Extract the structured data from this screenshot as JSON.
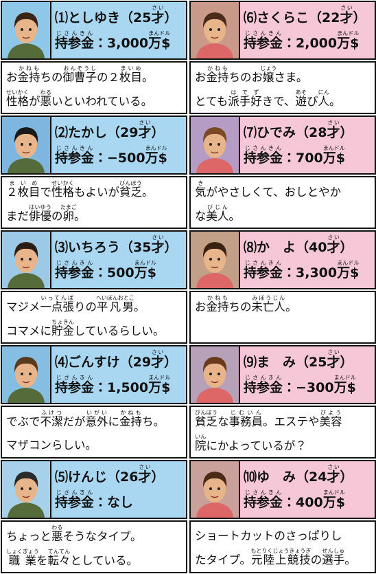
{
  "characters": [
    {
      "name": [
        "⑴としゆき（25",
        {
          "text": "才",
          "ruby": "さい"
        },
        "）"
      ],
      "money": [
        {
          "text": "持参金",
          "ruby": "じさんきん"
        },
        "：3,000",
        {
          "text": "万$",
          "ruby": "まんドル"
        }
      ],
      "description": [
        [
          "お",
          {
            "text": "金持",
            "ruby": "かねも"
          },
          "ちの",
          {
            "text": "御曹子",
            "ruby": "おんぞうし"
          },
          "の２",
          {
            "text": "枚目",
            "ruby": "まいめ"
          },
          "。"
        ],
        [
          {
            "text": "性格",
            "ruby": "せいかく"
          },
          "が",
          {
            "text": "悪",
            "ruby": "わる"
          },
          "いといわれている。"
        ]
      ]
    },
    {
      "name": [
        "⑵たかし（29",
        {
          "text": "才",
          "ruby": "さい"
        },
        "）"
      ],
      "money": [
        {
          "text": "持参金",
          "ruby": "じさんきん"
        },
        "：−500",
        {
          "text": "万$",
          "ruby": "まんドル"
        }
      ],
      "description": [
        [
          {
            "text": "２枚目",
            "ruby": "まいめ"
          },
          "で",
          {
            "text": "性格",
            "ruby": "せいかく"
          },
          "もよいが",
          {
            "text": "貧乏",
            "ruby": "びんぼう"
          },
          "。"
        ],
        [
          "まだ",
          {
            "text": "俳優",
            "ruby": "はいゆう"
          },
          "の",
          {
            "text": "卵",
            "ruby": "たまご"
          },
          "。"
        ]
      ]
    },
    {
      "name": [
        "⑶いちろう（35",
        {
          "text": "才",
          "ruby": "さい"
        },
        "）"
      ],
      "money": [
        {
          "text": "持参金",
          "ruby": "じさんきん"
        },
        "：500",
        {
          "text": "万$",
          "ruby": "まんドル"
        }
      ],
      "description": [
        [
          "マジメ",
          {
            "text": "一点張",
            "ruby": "いってんば"
          },
          "りの",
          {
            "text": "平凡男",
            "ruby": "へいぼんおとこ"
          },
          "。"
        ],
        [
          "コマメに",
          {
            "text": "貯金",
            "ruby": "ちょきん"
          },
          "しているらしい。"
        ]
      ]
    },
    {
      "name": [
        "⑷ごんすけ（29",
        {
          "text": "才",
          "ruby": "さい"
        },
        "）"
      ],
      "money": [
        {
          "text": "持参金",
          "ruby": "じさんきん"
        },
        "：1,500",
        {
          "text": "万$",
          "ruby": "まんドル"
        }
      ],
      "description": [
        [
          "でぶで",
          {
            "text": "不潔",
            "ruby": "ふけつ"
          },
          "だが",
          {
            "text": "意外",
            "ruby": "いがい"
          },
          "に",
          {
            "text": "金持",
            "ruby": "かねも"
          },
          "ち。"
        ],
        [
          "マザコンらしい。"
        ]
      ]
    },
    {
      "name": [
        "⑸けんじ（26",
        {
          "text": "才",
          "ruby": "さい"
        },
        "）"
      ],
      "money": [
        {
          "text": "持参金",
          "ruby": "じさんきん"
        },
        "：なし"
      ],
      "description": [
        [
          "ちょっと",
          {
            "text": "悪",
            "ruby": "わる"
          },
          "そうなタイプ。"
        ],
        [
          {
            "text": "職業",
            "ruby": "しょくぎょう"
          },
          "を",
          {
            "text": "転々",
            "ruby": "てんてん"
          },
          "としている。"
        ]
      ]
    },
    {
      "name": [
        "⑹さくらこ（22",
        {
          "text": "才",
          "ruby": "さい"
        },
        "）"
      ],
      "money": [
        {
          "text": "持参金",
          "ruby": "じさんきん"
        },
        "：2,000",
        {
          "text": "万$",
          "ruby": "まんドル"
        }
      ],
      "description": [
        [
          "お",
          {
            "text": "金持",
            "ruby": "かねも"
          },
          "ちのお",
          {
            "text": "嬢",
            "ruby": "じょう"
          },
          "さま。"
        ],
        [
          "とても",
          {
            "text": "派手",
            "ruby": "はで"
          },
          {
            "text": "好",
            "ruby": "ず"
          },
          "きで、",
          {
            "text": "遊",
            "ruby": "あそ"
          },
          "び",
          {
            "text": "人",
            "ruby": "にん"
          },
          "。"
        ]
      ]
    },
    {
      "name": [
        "⑺ひでみ（28",
        {
          "text": "才",
          "ruby": "さい"
        },
        "）"
      ],
      "money": [
        {
          "text": "持参金",
          "ruby": "じさんきん"
        },
        "：700",
        {
          "text": "万$",
          "ruby": "まんドル"
        }
      ],
      "description": [
        [
          {
            "text": "気",
            "ruby": "き"
          },
          "がやさしくて、おしとやか"
        ],
        [
          "な",
          {
            "text": "美人",
            "ruby": "びじん"
          },
          "。"
        ]
      ]
    },
    {
      "name": [
        "⑻か　よ（40",
        {
          "text": "才",
          "ruby": "さい"
        },
        "）"
      ],
      "money": [
        {
          "text": "持参金",
          "ruby": "じさんきん"
        },
        "：3,300",
        {
          "text": "万$",
          "ruby": "まんドル"
        }
      ],
      "description": [
        [
          "お",
          {
            "text": "金持",
            "ruby": "かねも"
          },
          "ちの",
          {
            "text": "未亡人",
            "ruby": "みぼうじん"
          },
          "。"
        ]
      ]
    },
    {
      "name": [
        "⑼ま　み（25",
        {
          "text": "才",
          "ruby": "さい"
        },
        "）"
      ],
      "money": [
        {
          "text": "持参金",
          "ruby": "じさんきん"
        },
        "：−300",
        {
          "text": "万$",
          "ruby": "まんドル"
        }
      ],
      "description": [
        [
          {
            "text": "貧乏",
            "ruby": "びんぼう"
          },
          "な",
          {
            "text": "事務員",
            "ruby": "じむいん"
          },
          "。エステや",
          {
            "text": "美容",
            "ruby": "びよう"
          }
        ],
        [
          {
            "text": "院",
            "ruby": "いん"
          },
          "にかよっているが？"
        ]
      ]
    },
    {
      "name": [
        "⑽ゆ　み（24",
        {
          "text": "才",
          "ruby": "さい"
        },
        "）"
      ],
      "money": [
        {
          "text": "持参金",
          "ruby": "じさんきん"
        },
        "：400",
        {
          "text": "万$",
          "ruby": "まんドル"
        }
      ],
      "description": [
        [
          "ショートカットのさっぱりし"
        ],
        [
          "たタイプ。",
          {
            "text": "元陸上競技",
            "ruby": "もとりくじょうきょうぎ"
          },
          "の",
          {
            "text": "選手",
            "ruby": "せんしゅ"
          },
          "。"
        ]
      ]
    }
  ]
}
